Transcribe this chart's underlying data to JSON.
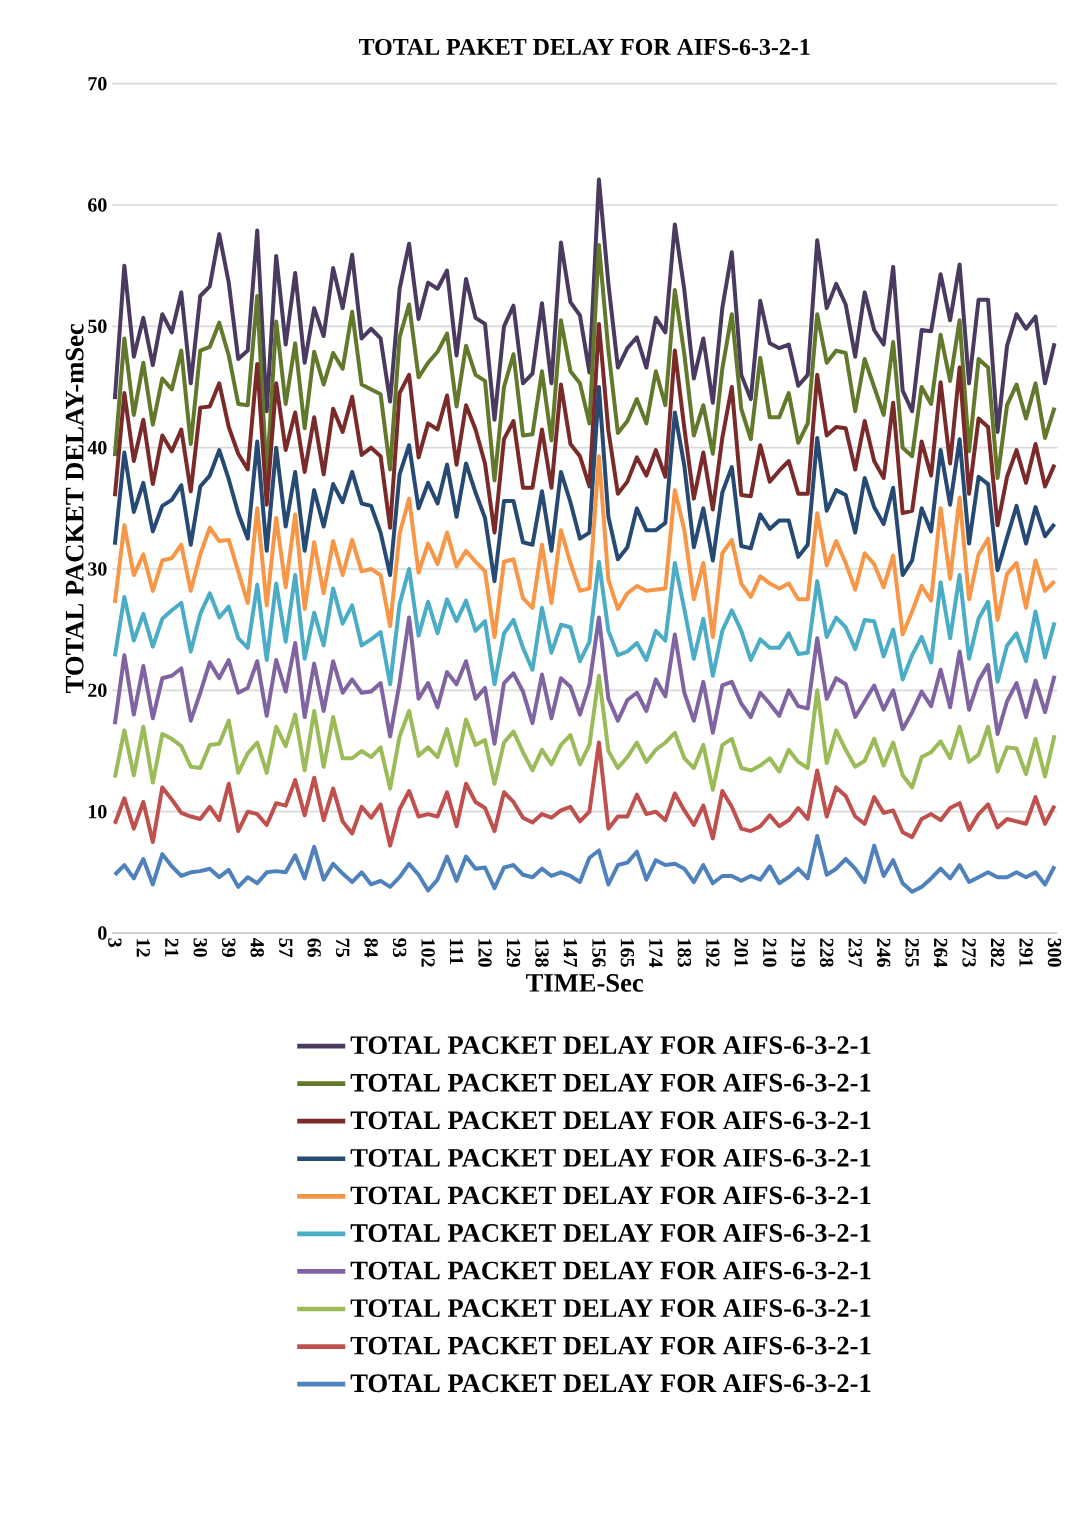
{
  "chart_data": {
    "type": "line",
    "title": "TOTAL PAKET DELAY FOR AIFS-6-3-2-1",
    "xlabel": "TIME-Sec",
    "ylabel": "TOTAL PACKET DELAY-mSec",
    "categories": [
      "3",
      null,
      null,
      "12",
      null,
      null,
      "21",
      null,
      null,
      "30",
      null,
      null,
      "39",
      null,
      null,
      "48",
      null,
      null,
      "57",
      null,
      null,
      "66",
      null,
      null,
      "75",
      null,
      null,
      "84",
      null,
      null,
      "93",
      null,
      null,
      "102",
      null,
      null,
      "111",
      null,
      null,
      "120",
      null,
      null,
      "129",
      null,
      null,
      "138",
      null,
      null,
      "147",
      null,
      null,
      "156",
      null,
      null,
      "165",
      null,
      null,
      "174",
      null,
      null,
      "183",
      null,
      null,
      "192",
      null,
      null,
      "201",
      null,
      null,
      "210",
      null,
      null,
      "219",
      null,
      null,
      "228",
      null,
      null,
      "237",
      null,
      null,
      "246",
      null,
      null,
      "255",
      null,
      null,
      "264",
      null,
      null,
      "273",
      null,
      null,
      "282",
      null,
      null,
      "291",
      null,
      null,
      "300"
    ],
    "ylim": [
      0,
      70
    ],
    "yticks": [
      0,
      10,
      20,
      30,
      40,
      50,
      60,
      70
    ],
    "grid": "y",
    "legend": "bottom",
    "series": [
      {
        "name": "TOTAL PACKET DELAY FOR AIFS-6-3-2-1",
        "color": "#4a3a5f",
        "values": [
          44,
          55,
          47.5,
          50.7,
          46.8,
          51,
          49.5,
          52.8,
          45.3,
          52.5,
          53.3,
          57.6,
          53.6,
          47.3,
          48,
          57.9,
          43,
          55.8,
          48.5,
          54.4,
          47,
          51.5,
          49.2,
          54.8,
          51.5,
          55.9,
          49,
          49.8,
          49,
          43.8,
          53.1,
          56.8,
          50.6,
          53.6,
          53.1,
          54.6,
          47.6,
          53.9,
          50.7,
          50.2,
          42.3,
          50,
          51.7,
          45.3,
          46.1,
          51.9,
          45.3,
          56.9,
          52,
          50.9,
          46.2,
          62.1,
          53.5,
          46.6,
          48.2,
          49.1,
          46.6,
          50.7,
          49.5,
          58.4,
          53,
          45.7,
          49,
          43.7,
          51.5,
          56.1,
          46,
          44,
          52.1,
          48.6,
          48.2,
          48.5,
          45.1,
          46,
          57.1,
          51.5,
          53.5,
          51.8,
          47.5,
          52.8,
          49.7,
          48.5,
          54.9,
          44.7,
          43,
          49.7,
          49.6,
          54.3,
          50.5,
          55.1,
          45.3,
          52.2,
          52.2,
          41.3,
          48.4,
          51,
          49.8,
          50.8,
          45.3,
          48.6
        ]
      },
      {
        "name": "TOTAL PACKET DELAY FOR AIFS-6-3-2-1",
        "color": "#62792c",
        "values": [
          39.3,
          49,
          42.7,
          47,
          41.9,
          45.7,
          44.8,
          48,
          40.3,
          48,
          48.3,
          50.3,
          47.6,
          43.6,
          43.5,
          52.5,
          37.5,
          50.4,
          43.6,
          48.6,
          41.6,
          47.9,
          45.2,
          47.8,
          46.5,
          51.2,
          45.2,
          44.8,
          44.4,
          38.2,
          49.1,
          51.8,
          45.8,
          47,
          47.9,
          49.4,
          43.4,
          48.4,
          46,
          45.5,
          37.3,
          45,
          47.7,
          41,
          41.1,
          46.3,
          40.6,
          50.5,
          46.3,
          45.3,
          42,
          56.7,
          48,
          41.2,
          42.2,
          44,
          42,
          46.3,
          43.5,
          53,
          47.7,
          41,
          43.5,
          39.5,
          46.5,
          51,
          43.2,
          40.7,
          47.4,
          42.5,
          42.5,
          44.5,
          40.4,
          42,
          51,
          47,
          48,
          47.8,
          43,
          47.3,
          45,
          42.7,
          48.7,
          40,
          39.3,
          45,
          43.6,
          49.3,
          45.5,
          50.5,
          39.7,
          47.3,
          46.6,
          37.5,
          43.5,
          45.2,
          42.4,
          45.3,
          40.8,
          43.3
        ]
      },
      {
        "name": "TOTAL PACKET DELAY FOR AIFS-6-3-2-1",
        "color": "#7b2a2a",
        "values": [
          36,
          44.5,
          38.9,
          42.3,
          37,
          41,
          39.7,
          41.5,
          36.4,
          43.3,
          43.4,
          45.3,
          41.7,
          39.5,
          38.2,
          46.9,
          35.3,
          45.3,
          39.8,
          42.9,
          38,
          42.5,
          37.8,
          43.2,
          41.3,
          44.2,
          39.4,
          40,
          39.3,
          33.4,
          44.5,
          46,
          39.2,
          42,
          41.5,
          44.3,
          38.6,
          43.5,
          41.5,
          38.7,
          33,
          40.7,
          42.2,
          36.7,
          36.7,
          41.5,
          36.7,
          45.2,
          40.3,
          39.3,
          36.8,
          50.2,
          41.4,
          36.2,
          37.2,
          39.2,
          37.7,
          39.8,
          37.6,
          48,
          41.6,
          35.8,
          39.6,
          34.9,
          40.8,
          45,
          36.1,
          36,
          40.2,
          37.2,
          38.1,
          38.9,
          36.2,
          36.2,
          46,
          41,
          41.7,
          41.6,
          38.2,
          42.2,
          38.9,
          37.5,
          43.7,
          34.6,
          34.8,
          40.5,
          37.7,
          45.4,
          38.7,
          46.6,
          36.2,
          42.4,
          41.7,
          33.6,
          37.6,
          39.8,
          37.1,
          40.3,
          36.8,
          38.6
        ]
      },
      {
        "name": "TOTAL PACKET DELAY FOR AIFS-6-3-2-1",
        "color": "#264a73",
        "values": [
          32,
          39.6,
          34.7,
          37.1,
          33.1,
          35.2,
          35.7,
          36.9,
          32,
          36.8,
          37.7,
          39.8,
          37.4,
          34.6,
          32.5,
          40.5,
          31.5,
          40,
          33.5,
          38,
          31.5,
          36.5,
          33.5,
          37,
          35.5,
          38,
          35.4,
          35.2,
          33,
          29.5,
          37.8,
          40.2,
          35,
          37.1,
          35.4,
          38.6,
          34.3,
          38.7,
          36.3,
          34.2,
          29,
          35.6,
          35.6,
          32.2,
          32,
          36.4,
          31.5,
          38,
          35.5,
          32.5,
          33,
          45,
          34.3,
          30.8,
          31.8,
          35,
          33.2,
          33.2,
          33.8,
          42.9,
          38.5,
          31.8,
          35,
          30.7,
          36.3,
          38.4,
          31.9,
          31.7,
          34.5,
          33.3,
          34,
          34,
          31,
          32,
          40.8,
          34.8,
          36.5,
          36.1,
          33,
          37.5,
          35.1,
          33.7,
          36.7,
          29.5,
          30.7,
          35,
          33.1,
          39.8,
          35.3,
          40.7,
          32.1,
          37.6,
          37,
          29.9,
          32.6,
          35.2,
          32.1,
          35.1,
          32.7,
          33.7
        ]
      },
      {
        "name": "TOTAL PACKET DELAY FOR AIFS-6-3-2-1",
        "color": "#f79646",
        "values": [
          27.2,
          33.6,
          29.5,
          31.2,
          28.2,
          30.7,
          30.9,
          32,
          28.2,
          31.2,
          33.4,
          32.3,
          32.4,
          29.8,
          27.2,
          35,
          27,
          34.2,
          28.5,
          34.5,
          26.7,
          32.2,
          28,
          32.3,
          29.5,
          32.4,
          29.8,
          30,
          29.5,
          25.3,
          32.9,
          35.8,
          29.7,
          32.1,
          30.4,
          33,
          30.2,
          31.5,
          30.6,
          29.8,
          24.4,
          30.6,
          30.8,
          27.6,
          26.8,
          32,
          27.2,
          33.2,
          30.5,
          28.2,
          28.4,
          39.3,
          29.1,
          26.7,
          28,
          28.6,
          28.2,
          28.3,
          28.4,
          36.5,
          33.2,
          27.5,
          30.5,
          24.4,
          31.3,
          32.4,
          28.8,
          27.7,
          29.4,
          28.8,
          28.4,
          28.8,
          27.5,
          27.5,
          34.6,
          30.3,
          32.3,
          30.5,
          28.3,
          31.3,
          30.4,
          28.5,
          31.1,
          24.6,
          26.5,
          28.6,
          27.4,
          35,
          29.2,
          35.9,
          27.5,
          31.2,
          32.5,
          25.8,
          29.6,
          30.5,
          26.8,
          30.7,
          28.2,
          29
        ]
      },
      {
        "name": "TOTAL PACKET DELAY FOR AIFS-6-3-2-1",
        "color": "#4bacc6",
        "values": [
          22.8,
          27.7,
          24.1,
          26.3,
          23.6,
          25.9,
          26.6,
          27.2,
          23.2,
          26.3,
          28,
          26,
          26.9,
          24.3,
          23.5,
          28.7,
          22.5,
          28.8,
          24,
          29.5,
          22.6,
          26.4,
          23.7,
          28.4,
          25.5,
          27,
          23.7,
          24.2,
          24.8,
          20.5,
          27.1,
          30,
          24.5,
          27.3,
          24.7,
          27.5,
          25.7,
          27.4,
          24.9,
          25.7,
          20.5,
          24.7,
          25.8,
          23.5,
          21.7,
          26.8,
          23.1,
          25.4,
          25.2,
          22.4,
          24,
          30.6,
          24.9,
          22.9,
          23.2,
          23.9,
          22.5,
          24.9,
          24.1,
          30.5,
          26.7,
          22.6,
          25.9,
          21.2,
          24.9,
          26.6,
          24.9,
          22.5,
          24.2,
          23.5,
          23.5,
          24.7,
          23,
          23.1,
          29,
          24.4,
          26,
          25.2,
          23.4,
          25.8,
          25.7,
          22.8,
          25,
          20.9,
          22.9,
          24.4,
          22.3,
          28.9,
          24.3,
          29.5,
          22.6,
          25.9,
          27.3,
          20.7,
          23.7,
          24.7,
          22.4,
          26.5,
          22.7,
          25.6
        ]
      },
      {
        "name": "TOTAL PACKET DELAY FOR AIFS-6-3-2-1",
        "color": "#8064a2",
        "values": [
          17.2,
          22.9,
          18,
          22,
          17.7,
          21,
          21.2,
          21.8,
          17.5,
          19.8,
          22.3,
          21,
          22.5,
          19.8,
          20.2,
          22.4,
          17.9,
          22.5,
          19.9,
          23.9,
          17.8,
          22.2,
          18.3,
          22.4,
          19.8,
          20.9,
          19.8,
          19.9,
          20.6,
          16.2,
          20.6,
          26,
          19.3,
          20.6,
          18.6,
          21.5,
          20.5,
          22.4,
          19.3,
          20.2,
          15.6,
          20.6,
          21.4,
          19.9,
          17.3,
          21.3,
          17.7,
          21,
          20.3,
          18,
          20.5,
          26,
          19.3,
          17.5,
          19.2,
          19.8,
          18.3,
          20.9,
          19.5,
          24.6,
          19.8,
          17.5,
          20.7,
          16.5,
          20.4,
          20.7,
          18.9,
          17.8,
          19.8,
          18.9,
          17.9,
          20,
          18.7,
          18.5,
          24.3,
          19.3,
          21,
          20.5,
          17.8,
          19.1,
          20.4,
          18.4,
          20,
          16.8,
          18.2,
          19.9,
          18.7,
          21.7,
          18.6,
          23.2,
          18.4,
          20.8,
          22.1,
          16.4,
          19.1,
          20.6,
          17.8,
          20.8,
          18.2,
          21.2
        ]
      },
      {
        "name": "TOTAL PACKET DELAY FOR AIFS-6-3-2-1",
        "color": "#9bbb59",
        "values": [
          12.8,
          16.7,
          13,
          17,
          12.4,
          16.4,
          16,
          15.4,
          13.7,
          13.6,
          15.5,
          15.6,
          17.5,
          13.2,
          14.8,
          15.7,
          13.2,
          17,
          15.4,
          18,
          13.4,
          18.3,
          13.7,
          17.8,
          14.4,
          14.4,
          15,
          14.5,
          15.3,
          11.9,
          16.2,
          18.3,
          14.6,
          15.3,
          14.5,
          16.8,
          13.8,
          17.6,
          15.5,
          15.9,
          12.3,
          15.7,
          16.6,
          14.9,
          13.4,
          15.1,
          13.9,
          15.5,
          16.3,
          13.9,
          15.5,
          21.2,
          15,
          13.6,
          14.5,
          15.7,
          14.1,
          15.1,
          15.7,
          16.5,
          14.4,
          13.6,
          15.5,
          11.8,
          15.5,
          16,
          13.6,
          13.4,
          13.8,
          14.4,
          13.3,
          15.1,
          14.1,
          13.6,
          20,
          14,
          16.7,
          15.1,
          13.7,
          14.2,
          16,
          13.8,
          15.7,
          13,
          12,
          14.5,
          14.9,
          15.8,
          14.4,
          17,
          14.1,
          14.7,
          17,
          13.3,
          15.3,
          15.2,
          13.1,
          16,
          12.9,
          16.3
        ]
      },
      {
        "name": "TOTAL PACKET DELAY FOR AIFS-6-3-2-1",
        "color": "#c0504d",
        "values": [
          9,
          11.1,
          8.6,
          10.8,
          7.5,
          12,
          11,
          9.9,
          9.6,
          9.4,
          10.4,
          9.3,
          12.3,
          8.4,
          10,
          9.8,
          8.9,
          10.7,
          10.5,
          12.6,
          9.7,
          12.8,
          9.3,
          11.9,
          9.2,
          8.2,
          10.4,
          9.5,
          10.6,
          7.2,
          10.2,
          11.7,
          9.6,
          9.8,
          9.6,
          11.6,
          8.8,
          12.3,
          10.8,
          10.3,
          8.4,
          11.6,
          10.8,
          9.5,
          9.1,
          9.8,
          9.5,
          10.1,
          10.4,
          9.2,
          10,
          15.7,
          8.6,
          9.6,
          9.6,
          11.4,
          9.8,
          10,
          9.3,
          11.5,
          10.1,
          8.9,
          10.5,
          7.8,
          11.7,
          10.4,
          8.6,
          8.4,
          8.8,
          9.7,
          8.8,
          9.3,
          10.3,
          9.4,
          13.4,
          9.6,
          12,
          11.3,
          9.6,
          9,
          11.2,
          9.9,
          10.1,
          8.3,
          7.9,
          9.4,
          9.8,
          9.3,
          10.3,
          10.7,
          8.5,
          9.8,
          10.6,
          8.7,
          9.4,
          9.2,
          9,
          11.2,
          9,
          10.5
        ]
      },
      {
        "name": "TOTAL PACKET DELAY FOR AIFS-6-3-2-1",
        "color": "#4f81bd",
        "values": [
          4.8,
          5.6,
          4.5,
          6.1,
          4,
          6.5,
          5.5,
          4.7,
          5,
          5.1,
          5.3,
          4.6,
          5.2,
          3.8,
          4.6,
          4.1,
          5,
          5.1,
          5,
          6.4,
          4.5,
          7.1,
          4.4,
          5.7,
          4.9,
          4.2,
          5,
          4,
          4.3,
          3.8,
          4.6,
          5.7,
          4.8,
          3.5,
          4.4,
          6.3,
          4.3,
          6.3,
          5.3,
          5.4,
          3.7,
          5.4,
          5.6,
          4.8,
          4.6,
          5.3,
          4.7,
          5,
          4.7,
          4.2,
          6.2,
          6.8,
          4,
          5.6,
          5.8,
          6.7,
          4.4,
          6,
          5.6,
          5.7,
          5.3,
          4.2,
          5.6,
          4.1,
          4.7,
          4.7,
          4.3,
          4.7,
          4.4,
          5.5,
          4.1,
          4.6,
          5.3,
          4.5,
          8,
          4.8,
          5.3,
          6.1,
          5.3,
          4.2,
          7.2,
          4.7,
          6,
          4.1,
          3.4,
          3.8,
          4.5,
          5.3,
          4.5,
          5.6,
          4.2,
          4.6,
          5,
          4.6,
          4.6,
          5,
          4.6,
          5,
          4,
          5.5
        ]
      }
    ]
  }
}
